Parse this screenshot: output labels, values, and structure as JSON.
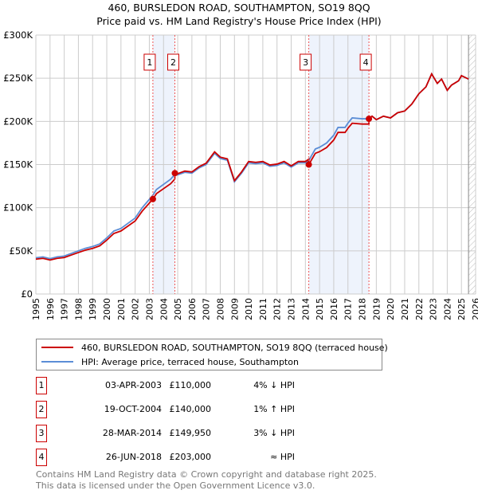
{
  "title": "460, BURSLEDON ROAD, SOUTHAMPTON, SO19 8QQ",
  "subtitle": "Price paid vs. HM Land Registry's House Price Index (HPI)",
  "chart_data": {
    "type": "line",
    "ylim": [
      0,
      300000
    ],
    "xlim": [
      1995,
      2026
    ],
    "yticks": [
      {
        "v": 0,
        "label": "£0"
      },
      {
        "v": 50000,
        "label": "£50K"
      },
      {
        "v": 100000,
        "label": "£100K"
      },
      {
        "v": 150000,
        "label": "£150K"
      },
      {
        "v": 200000,
        "label": "£200K"
      },
      {
        "v": 250000,
        "label": "£250K"
      },
      {
        "v": 300000,
        "label": "£300K"
      }
    ],
    "xticks": [
      "1995",
      "1996",
      "1997",
      "1998",
      "1999",
      "2000",
      "2001",
      "2002",
      "2003",
      "2004",
      "2005",
      "2006",
      "2007",
      "2008",
      "2009",
      "2010",
      "2011",
      "2012",
      "2013",
      "2014",
      "2015",
      "2016",
      "2017",
      "2018",
      "2019",
      "2020",
      "2021",
      "2022",
      "2023",
      "2024",
      "2025",
      "2026"
    ],
    "forecast_start": 2025.5,
    "hpi": [
      [
        1995,
        42
      ],
      [
        1995.5,
        43
      ],
      [
        1996,
        41
      ],
      [
        1996.5,
        43
      ],
      [
        1997,
        44
      ],
      [
        1997.5,
        47
      ],
      [
        1998,
        50
      ],
      [
        1998.5,
        53
      ],
      [
        1999,
        55
      ],
      [
        1999.5,
        58
      ],
      [
        2000,
        65
      ],
      [
        2000.5,
        73
      ],
      [
        2001,
        76
      ],
      [
        2001.5,
        82
      ],
      [
        2002,
        88
      ],
      [
        2002.5,
        100
      ],
      [
        2003.25,
        114.5
      ],
      [
        2003.5,
        121
      ],
      [
        2004,
        127
      ],
      [
        2004.5,
        133
      ],
      [
        2004.8,
        138.6
      ],
      [
        2005,
        138
      ],
      [
        2005.5,
        141
      ],
      [
        2006,
        140
      ],
      [
        2006.5,
        146
      ],
      [
        2007,
        150
      ],
      [
        2007.6,
        163
      ],
      [
        2008,
        157
      ],
      [
        2008.5,
        155
      ],
      [
        2009,
        130
      ],
      [
        2009.5,
        140
      ],
      [
        2010,
        152
      ],
      [
        2010.5,
        151
      ],
      [
        2011,
        152
      ],
      [
        2011.5,
        148
      ],
      [
        2012,
        149
      ],
      [
        2012.5,
        152
      ],
      [
        2013,
        147
      ],
      [
        2013.5,
        152
      ],
      [
        2014,
        152
      ],
      [
        2014.24,
        154.6
      ],
      [
        2014.7,
        168
      ],
      [
        2015,
        170
      ],
      [
        2015.5,
        175
      ],
      [
        2016,
        184
      ],
      [
        2016.3,
        193
      ],
      [
        2016.8,
        193
      ],
      [
        2017,
        198
      ],
      [
        2017.3,
        204
      ],
      [
        2018,
        203
      ],
      [
        2018.48,
        203
      ],
      [
        2018.7,
        206
      ],
      [
        2019,
        202
      ],
      [
        2019.5,
        206
      ],
      [
        2020,
        204
      ],
      [
        2020.5,
        210
      ],
      [
        2021,
        212
      ],
      [
        2021.5,
        220
      ],
      [
        2022,
        232
      ],
      [
        2022.5,
        240
      ],
      [
        2022.9,
        255
      ],
      [
        2023.3,
        244
      ],
      [
        2023.6,
        249
      ],
      [
        2024,
        236
      ],
      [
        2024.3,
        242
      ],
      [
        2024.8,
        247
      ],
      [
        2025,
        253
      ],
      [
        2025.5,
        249
      ]
    ],
    "sales": [
      {
        "n": "1",
        "x": 2003.25,
        "v": 110000
      },
      {
        "n": "2",
        "x": 2004.8,
        "v": 140000
      },
      {
        "n": "3",
        "x": 2014.24,
        "v": 149950
      },
      {
        "n": "4",
        "x": 2018.48,
        "v": 203000
      }
    ],
    "colors": {
      "price": "#cc0000",
      "hpi": "#5b8dd6",
      "shade": "#eef3fc"
    }
  },
  "legend": {
    "price": "460, BURSLEDON ROAD, SOUTHAMPTON, SO19 8QQ (terraced house)",
    "hpi": "HPI: Average price, terraced house, Southampton"
  },
  "table": [
    {
      "n": "1",
      "date": "03-APR-2003",
      "price": "£110,000",
      "hpi": "4% ↓ HPI"
    },
    {
      "n": "2",
      "date": "19-OCT-2004",
      "price": "£140,000",
      "hpi": "1% ↑ HPI"
    },
    {
      "n": "3",
      "date": "28-MAR-2014",
      "price": "£149,950",
      "hpi": "3% ↓ HPI"
    },
    {
      "n": "4",
      "date": "26-JUN-2018",
      "price": "£203,000",
      "hpi": "≈ HPI"
    }
  ],
  "footer": {
    "line1": "Contains HM Land Registry data © Crown copyright and database right 2025.",
    "line2": "This data is licensed under the Open Government Licence v3.0."
  }
}
